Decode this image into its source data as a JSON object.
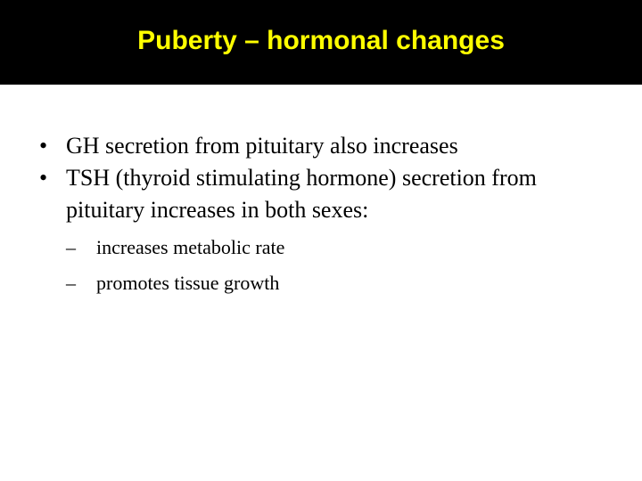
{
  "slide": {
    "title": "Puberty – hormonal changes",
    "bullets": [
      {
        "marker": "•",
        "text": "GH secretion from pituitary also increases"
      },
      {
        "marker": "•",
        "text": "TSH (thyroid stimulating hormone) secretion from pituitary increases in both sexes:"
      }
    ],
    "sub_bullets": [
      {
        "marker": "–",
        "text": "increases metabolic rate"
      },
      {
        "marker": "–",
        "text": "promotes tissue growth"
      }
    ]
  },
  "colors": {
    "title_bar": "#000000",
    "title_text": "#ffff00",
    "body_text": "#000000",
    "background": "#ffffff"
  }
}
